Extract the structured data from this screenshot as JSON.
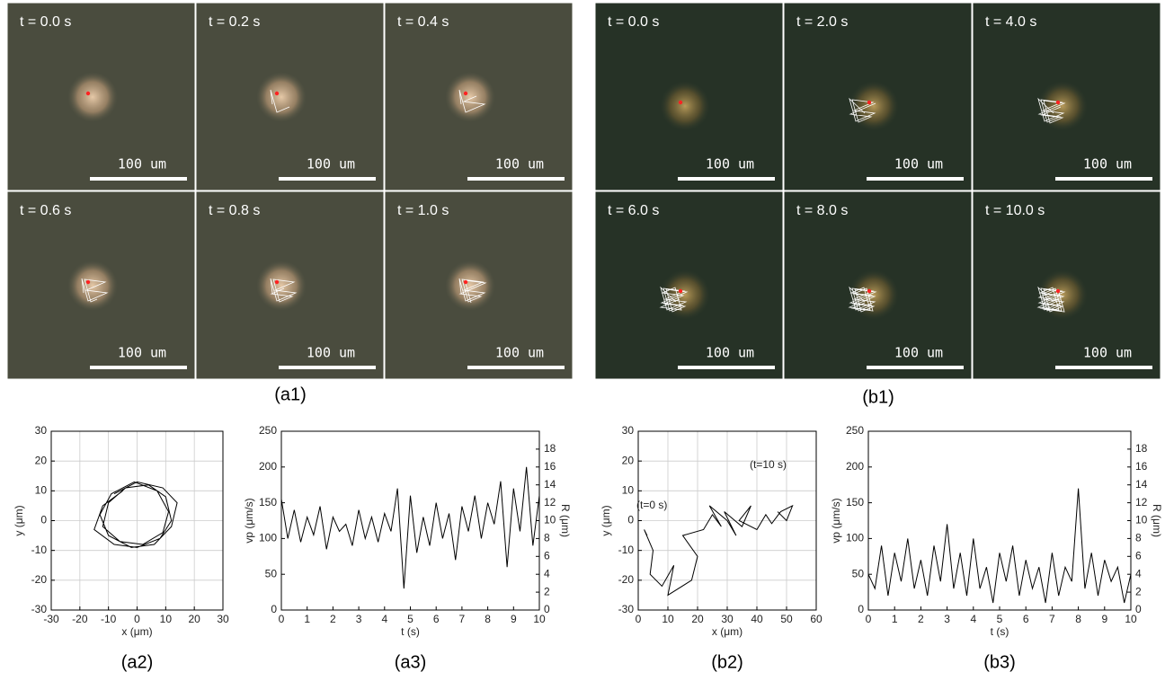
{
  "panels": {
    "a1": {
      "caption": "(a1)",
      "frames": [
        {
          "time": "t = 0.0 s",
          "scale": "100 um"
        },
        {
          "time": "t = 0.2 s",
          "scale": "100 um"
        },
        {
          "time": "t = 0.4 s",
          "scale": "100 um"
        },
        {
          "time": "t = 0.6 s",
          "scale": "100 um"
        },
        {
          "time": "t = 0.8 s",
          "scale": "100 um"
        },
        {
          "time": "t = 1.0 s",
          "scale": "100 um"
        }
      ]
    },
    "b1": {
      "caption": "(b1)",
      "frames": [
        {
          "time": "t = 0.0 s",
          "scale": "100 um"
        },
        {
          "time": "t = 2.0 s",
          "scale": "100 um"
        },
        {
          "time": "t = 4.0 s",
          "scale": "100 um"
        },
        {
          "time": "t = 6.0 s",
          "scale": "100 um"
        },
        {
          "time": "t = 8.0 s",
          "scale": "100 um"
        },
        {
          "time": "t = 10.0 s",
          "scale": "100 um"
        }
      ]
    }
  },
  "chart_data": [
    {
      "type": "line",
      "caption": "(a2)",
      "xlabel": "x (μm)",
      "ylabel": "y (μm)",
      "grid": true,
      "xlim": [
        -30,
        30
      ],
      "xticks": [
        -30,
        -20,
        -10,
        0,
        10,
        20,
        30
      ],
      "ylim": [
        -30,
        30
      ],
      "yticks": [
        -30,
        -20,
        -10,
        0,
        10,
        20,
        30
      ],
      "x": [
        -5,
        -12,
        -15,
        -8,
        0,
        8,
        12,
        10,
        4,
        -4,
        -10,
        -12,
        -6,
        2,
        9,
        11,
        7,
        -1,
        -9,
        -13,
        -10,
        -2,
        6,
        12,
        14,
        9,
        0,
        -8
      ],
      "series": [
        {
          "color": "#000000",
          "values": [
            10,
            5,
            -3,
            -8,
            -9,
            -6,
            0,
            8,
            12,
            11,
            6,
            -2,
            -7,
            -8,
            -4,
            3,
            10,
            13,
            9,
            2,
            -5,
            -9,
            -8,
            -2,
            6,
            11,
            13,
            9
          ]
        }
      ]
    },
    {
      "type": "line",
      "caption": "(a3)",
      "xlabel": "t (s)",
      "ylabel": "vp (μm/s)",
      "y2label": "R (μm)",
      "grid": false,
      "xlim": [
        0,
        10
      ],
      "xticks": [
        0,
        1,
        2,
        3,
        4,
        5,
        6,
        7,
        8,
        9,
        10
      ],
      "ylim": [
        0,
        250
      ],
      "yticks": [
        0,
        50,
        100,
        150,
        200,
        250
      ],
      "y2lim": [
        0,
        20
      ],
      "y2ticks": [
        0,
        2,
        4,
        6,
        8,
        10,
        12,
        14,
        16,
        18
      ],
      "x": [
        0,
        0.25,
        0.5,
        0.75,
        1,
        1.25,
        1.5,
        1.75,
        2,
        2.25,
        2.5,
        2.75,
        3,
        3.25,
        3.5,
        3.75,
        4,
        4.25,
        4.5,
        4.75,
        5,
        5.25,
        5.5,
        5.75,
        6,
        6.25,
        6.5,
        6.75,
        7,
        7.25,
        7.5,
        7.75,
        8,
        8.25,
        8.5,
        8.75,
        9,
        9.25,
        9.5,
        9.75,
        10
      ],
      "series": [
        {
          "color": "#000000",
          "values": [
            155,
            100,
            140,
            95,
            130,
            105,
            145,
            85,
            130,
            110,
            120,
            90,
            140,
            100,
            130,
            95,
            135,
            110,
            170,
            30,
            160,
            80,
            130,
            90,
            150,
            100,
            135,
            70,
            145,
            110,
            160,
            100,
            150,
            120,
            180,
            60,
            170,
            110,
            200,
            90,
            160
          ]
        }
      ]
    },
    {
      "type": "line",
      "caption": "(b2)",
      "xlabel": "x (μm)",
      "ylabel": "y (μm)",
      "grid": true,
      "annotations": [
        "(t=0 s)",
        "(t=10 s)"
      ],
      "xlim": [
        0,
        60
      ],
      "xticks": [
        0,
        10,
        20,
        30,
        40,
        50,
        60
      ],
      "ylim": [
        -30,
        30
      ],
      "yticks": [
        -30,
        -20,
        -10,
        0,
        10,
        20,
        30
      ],
      "x": [
        3,
        2,
        5,
        4,
        8,
        12,
        10,
        18,
        20,
        15,
        22,
        25,
        28,
        24,
        30,
        33,
        29,
        35,
        38,
        34,
        40,
        43,
        45,
        48,
        52,
        50,
        47
      ],
      "series": [
        {
          "color": "#000000",
          "values": [
            -5,
            -3,
            -10,
            -18,
            -22,
            -15,
            -25,
            -20,
            -12,
            -5,
            -3,
            2,
            -2,
            5,
            0,
            -5,
            3,
            -2,
            5,
            0,
            -3,
            2,
            -1,
            3,
            5,
            0,
            3
          ]
        }
      ]
    },
    {
      "type": "line",
      "caption": "(b3)",
      "xlabel": "t (s)",
      "ylabel": "vp (μm/s)",
      "y2label": "R (μm)",
      "grid": false,
      "xlim": [
        0,
        10
      ],
      "xticks": [
        0,
        1,
        2,
        3,
        4,
        5,
        6,
        7,
        8,
        9,
        10
      ],
      "ylim": [
        0,
        250
      ],
      "yticks": [
        0,
        50,
        100,
        150,
        200,
        250
      ],
      "y2lim": [
        0,
        20
      ],
      "y2ticks": [
        0,
        2,
        4,
        6,
        8,
        10,
        12,
        14,
        16,
        18
      ],
      "x": [
        0,
        0.25,
        0.5,
        0.75,
        1,
        1.25,
        1.5,
        1.75,
        2,
        2.25,
        2.5,
        2.75,
        3,
        3.25,
        3.5,
        3.75,
        4,
        4.25,
        4.5,
        4.75,
        5,
        5.25,
        5.5,
        5.75,
        6,
        6.25,
        6.5,
        6.75,
        7,
        7.25,
        7.5,
        7.75,
        8,
        8.25,
        8.5,
        8.75,
        9,
        9.25,
        9.5,
        9.75,
        10
      ],
      "series": [
        {
          "color": "#000000",
          "values": [
            50,
            30,
            90,
            20,
            80,
            40,
            100,
            30,
            70,
            20,
            90,
            40,
            120,
            30,
            80,
            20,
            100,
            30,
            60,
            10,
            80,
            40,
            90,
            20,
            70,
            30,
            60,
            10,
            80,
            20,
            60,
            40,
            170,
            30,
            80,
            20,
            70,
            40,
            60,
            10,
            50
          ]
        }
      ]
    }
  ]
}
